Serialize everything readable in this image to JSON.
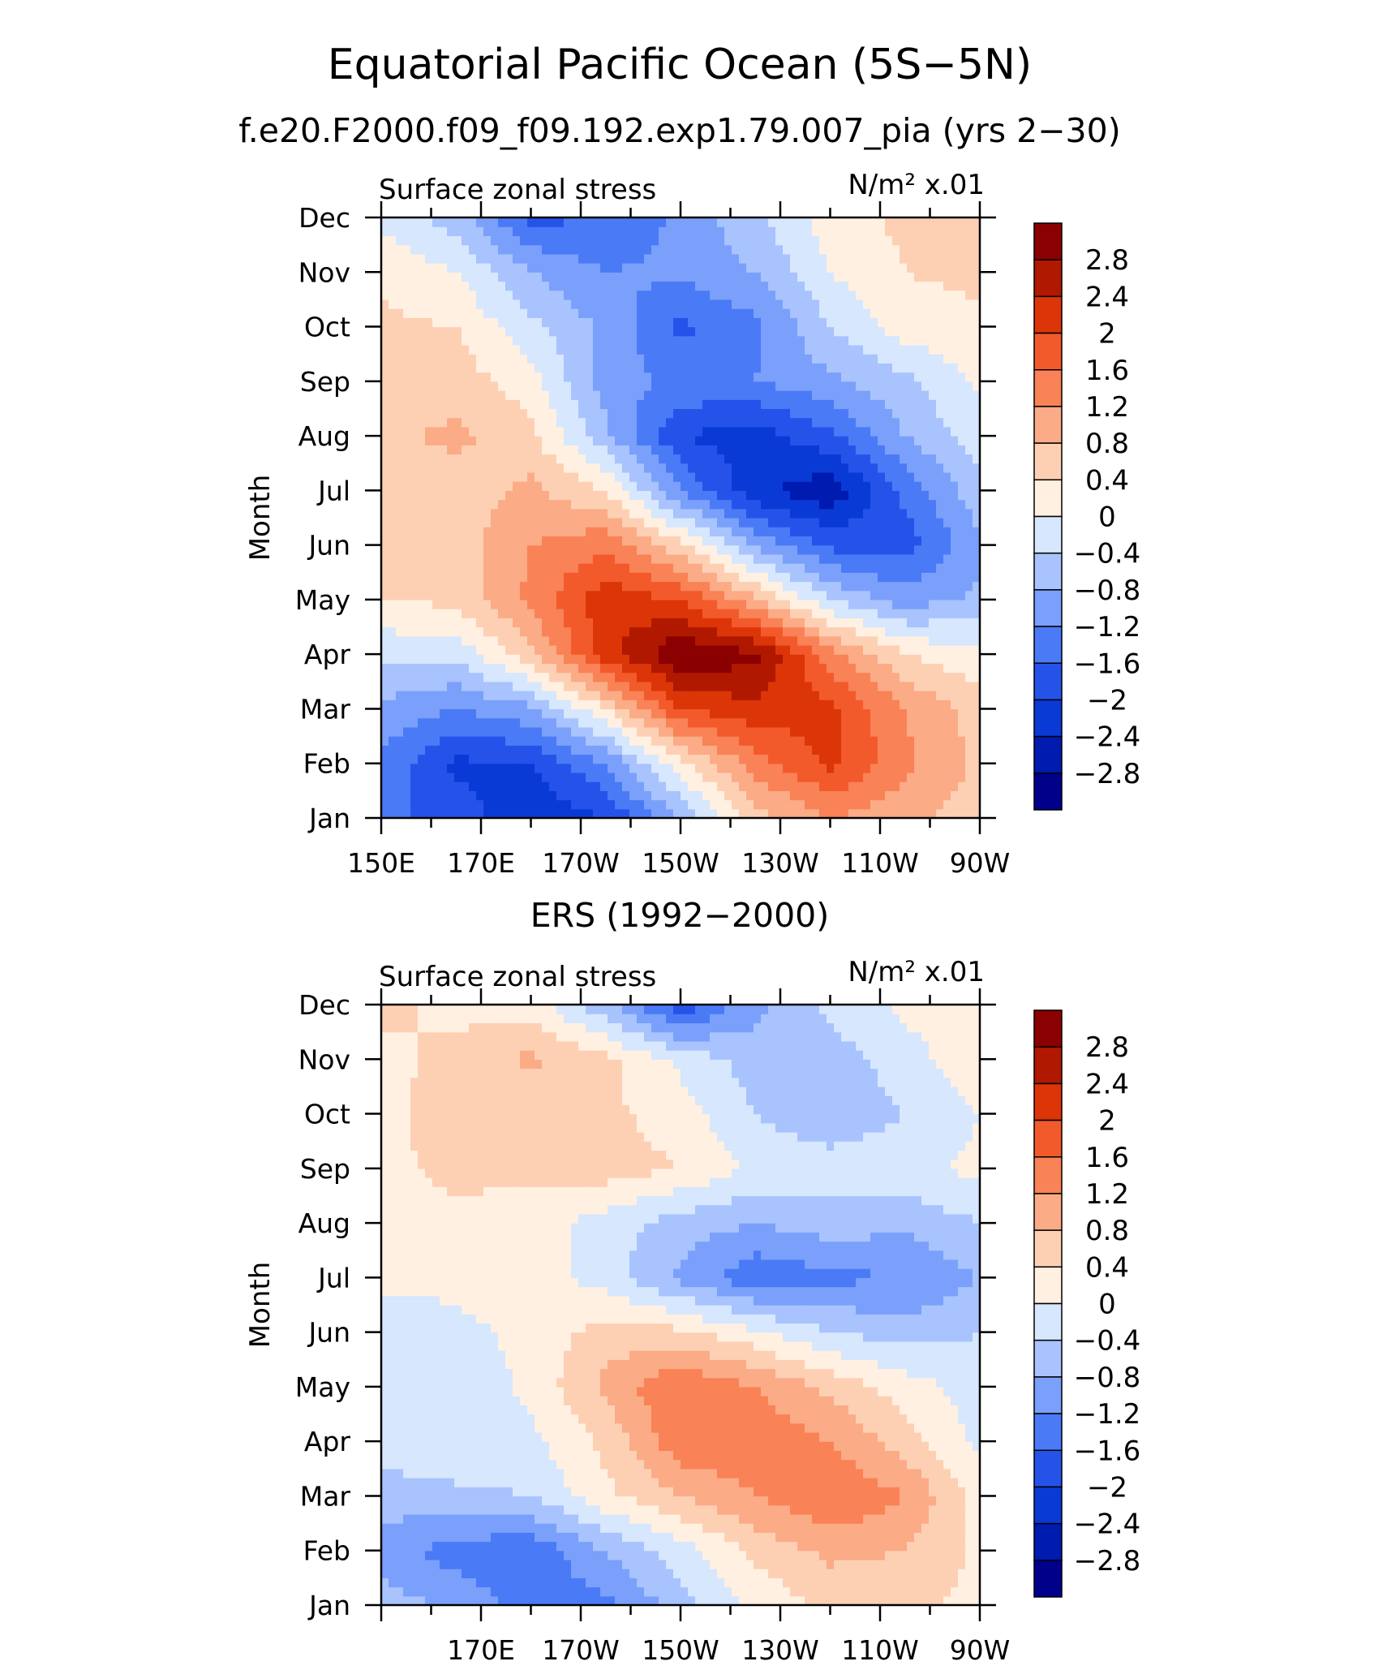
{
  "title": "Equatorial Pacific Ocean (5S−5N)",
  "colors": [
    "#00008b",
    "#001bb0",
    "#0a3ad6",
    "#2553ea",
    "#4a7af6",
    "#7aa0fb",
    "#a8c3fd",
    "#d6e7fe",
    "#fff0e1",
    "#fdd0b4",
    "#fbab86",
    "#f98256",
    "#f25a2c",
    "#dc3508",
    "#b01800",
    "#8b0000"
  ],
  "chart_data": [
    {
      "type": "heatmap",
      "title": "f.e20.F2000.f09_f09.192.exp1.79.007_pia (yrs 2−30)",
      "left_label": "Surface zonal stress",
      "right_label": "N/m² x.01",
      "ylabel": "Month",
      "xlabel": "",
      "months": [
        "Jan",
        "Feb",
        "Mar",
        "Apr",
        "May",
        "Jun",
        "Jul",
        "Aug",
        "Sep",
        "Oct",
        "Nov",
        "Dec"
      ],
      "xticks": [
        {
          "label": "150E",
          "lon": 150
        },
        {
          "label": "170E",
          "lon": 170
        },
        {
          "label": "170W",
          "lon": 190
        },
        {
          "label": "150W",
          "lon": 210
        },
        {
          "label": "130W",
          "lon": 230
        },
        {
          "label": "110W",
          "lon": 250
        },
        {
          "label": "90W",
          "lon": 270
        }
      ],
      "xlim": [
        150,
        270
      ],
      "colorbar": {
        "levels": [
          "2.8",
          "2.4",
          "2",
          "1.6",
          "1.2",
          "0.8",
          "0.4",
          "0",
          "−0.4",
          "−0.8",
          "−1.2",
          "−1.6",
          "−2",
          "−2.4",
          "−2.8"
        ]
      },
      "grid": {
        "lons": [
          150,
          165,
          180,
          195,
          210,
          225,
          240,
          255,
          270
        ],
        "values": [
          [
            -1.5,
            -1.8,
            -2.3,
            -2.0,
            -0.8,
            0.6,
            1.2,
            0.9,
            0.6
          ],
          [
            -1.3,
            -2.1,
            -2.0,
            -1.2,
            0.3,
            1.4,
            2.1,
            1.3,
            0.7
          ],
          [
            -0.9,
            -1.2,
            -0.9,
            0.4,
            2.0,
            2.3,
            2.1,
            1.2,
            0.6
          ],
          [
            -0.3,
            -0.3,
            0.7,
            2.2,
            3.2,
            2.9,
            1.4,
            0.4,
            0.1
          ],
          [
            0.4,
            0.5,
            1.3,
            2.3,
            2.0,
            0.9,
            -0.4,
            -1.0,
            -0.7
          ],
          [
            0.5,
            0.6,
            1.2,
            1.5,
            0.5,
            -0.9,
            -1.7,
            -1.8,
            -0.9
          ],
          [
            0.6,
            0.6,
            0.9,
            0.4,
            -1.2,
            -2.3,
            -2.7,
            -1.5,
            -0.5
          ],
          [
            0.7,
            0.9,
            0.5,
            -0.7,
            -2.0,
            -2.2,
            -1.7,
            -0.8,
            -0.2
          ],
          [
            0.6,
            0.6,
            0.2,
            -1.0,
            -1.3,
            -1.2,
            -0.9,
            -0.5,
            0.1
          ],
          [
            0.5,
            0.4,
            -0.3,
            -0.9,
            -1.7,
            -1.3,
            -0.4,
            0.2,
            0.3
          ],
          [
            0.3,
            0.0,
            -0.8,
            -1.2,
            -1.1,
            -0.8,
            0.0,
            0.4,
            0.5
          ],
          [
            -0.1,
            -0.6,
            -1.7,
            -1.6,
            -1.1,
            -0.5,
            0.2,
            0.5,
            0.5
          ]
        ]
      }
    },
    {
      "type": "heatmap",
      "title": "ERS (1992−2000)",
      "left_label": "Surface zonal stress",
      "right_label": "N/m² x.01",
      "ylabel": "Month",
      "xlabel": "",
      "months": [
        "Jan",
        "Feb",
        "Mar",
        "Apr",
        "May",
        "Jun",
        "Jul",
        "Aug",
        "Sep",
        "Oct",
        "Nov",
        "Dec"
      ],
      "xticks": [
        {
          "label": "170E",
          "lon": 170
        },
        {
          "label": "170W",
          "lon": 190
        },
        {
          "label": "150W",
          "lon": 210
        },
        {
          "label": "130W",
          "lon": 230
        },
        {
          "label": "110W",
          "lon": 250
        },
        {
          "label": "90W",
          "lon": 270
        }
      ],
      "xlim": [
        150,
        270
      ],
      "colorbar": {
        "levels": [
          "2.8",
          "2.4",
          "2",
          "1.6",
          "1.2",
          "0.8",
          "0.4",
          "0",
          "−0.4",
          "−0.8",
          "−1.2",
          "−1.6",
          "−2",
          "−2.4",
          "−2.8"
        ]
      },
      "grid": {
        "lons": [
          150,
          165,
          180,
          195,
          210,
          225,
          240,
          255,
          270
        ],
        "values": [
          [
            -0.6,
            -0.9,
            -1.4,
            -1.3,
            -0.6,
            0.1,
            0.5,
            0.5,
            0.3
          ],
          [
            -1.0,
            -1.4,
            -1.5,
            -0.8,
            -0.2,
            0.5,
            0.9,
            0.8,
            0.3
          ],
          [
            -0.6,
            -0.5,
            -0.4,
            0.3,
            0.8,
            1.2,
            1.6,
            1.2,
            0.2
          ],
          [
            -0.2,
            -0.1,
            -0.1,
            0.5,
            1.5,
            1.5,
            1.2,
            0.6,
            -0.1
          ],
          [
            -0.2,
            -0.3,
            0.1,
            0.9,
            1.6,
            1.2,
            0.7,
            0.2,
            -0.2
          ],
          [
            -0.3,
            -0.1,
            0.1,
            0.6,
            0.5,
            0.1,
            -0.4,
            -0.6,
            -0.4
          ],
          [
            0.1,
            0.1,
            0.2,
            -0.2,
            -0.9,
            -1.5,
            -1.3,
            -1.2,
            -0.8
          ],
          [
            0.2,
            0.3,
            0.2,
            -0.2,
            -0.6,
            -0.8,
            -0.6,
            -0.7,
            -0.4
          ],
          [
            0.3,
            0.5,
            0.5,
            0.6,
            0.4,
            -0.1,
            -0.2,
            -0.1,
            0.1
          ],
          [
            0.3,
            0.6,
            0.4,
            0.5,
            0.2,
            -0.4,
            -0.7,
            -0.4,
            0.0
          ],
          [
            0.3,
            0.5,
            0.9,
            0.5,
            -0.1,
            -0.6,
            -0.6,
            -0.2,
            0.3
          ],
          [
            0.5,
            0.3,
            0.2,
            -0.7,
            -1.9,
            -0.9,
            -0.3,
            0.1,
            0.4
          ]
        ]
      }
    }
  ]
}
